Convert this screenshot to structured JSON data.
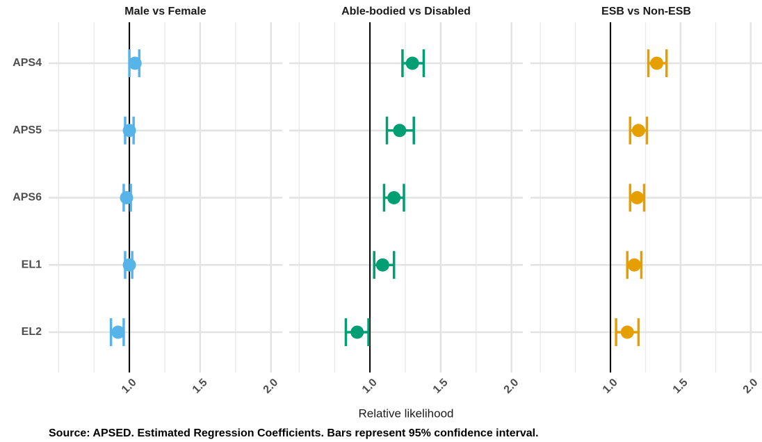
{
  "chart_data": [
    {
      "type": "errorbar",
      "title": "Male vs Female",
      "categories": [
        "APS4",
        "APS5",
        "APS6",
        "EL1",
        "EL2"
      ],
      "series": [
        {
          "color": "#56b4e9",
          "values": [
            1.04,
            1.0,
            0.98,
            1.0,
            0.92
          ],
          "lower": [
            1.0,
            0.97,
            0.96,
            0.97,
            0.87
          ],
          "upper": [
            1.07,
            1.03,
            1.01,
            1.02,
            0.96
          ]
        }
      ],
      "xlim": [
        0.43,
        2.08
      ],
      "xticks": [
        {
          "value": 1,
          "label": "1.0"
        },
        {
          "value": 1.5,
          "label": "1.5"
        },
        {
          "value": 2,
          "label": "2.0"
        }
      ],
      "minor_xticks": [
        0.5,
        0.75,
        1.25,
        1.75
      ],
      "reference_line": 1,
      "grid": true
    },
    {
      "type": "errorbar",
      "title": "Able-bodied vs Disabled",
      "series": [
        {
          "color": "#009e73",
          "values": [
            1.3,
            1.21,
            1.17,
            1.09,
            0.91
          ],
          "lower": [
            1.23,
            1.12,
            1.1,
            1.03,
            0.83
          ],
          "upper": [
            1.38,
            1.31,
            1.24,
            1.17,
            0.99
          ]
        }
      ],
      "xlim": [
        0.43,
        2.08
      ],
      "xticks": [
        {
          "value": 1,
          "label": "1.0"
        },
        {
          "value": 1.5,
          "label": "1.5"
        },
        {
          "value": 2,
          "label": "2.0"
        }
      ],
      "minor_xticks": [
        0.5,
        0.75,
        1.25,
        1.75
      ],
      "reference_line": 1,
      "grid": true
    },
    {
      "type": "errorbar",
      "title": "ESB vs Non-ESB",
      "series": [
        {
          "color": "#e69f00",
          "values": [
            1.33,
            1.2,
            1.19,
            1.17,
            1.12
          ],
          "lower": [
            1.27,
            1.14,
            1.14,
            1.12,
            1.04
          ],
          "upper": [
            1.4,
            1.26,
            1.24,
            1.22,
            1.2
          ]
        }
      ],
      "xlim": [
        0.43,
        2.08
      ],
      "xticks": [
        {
          "value": 1,
          "label": "1.0"
        },
        {
          "value": 1.5,
          "label": "1.5"
        },
        {
          "value": 2,
          "label": "2.0"
        }
      ],
      "minor_xticks": [
        0.5,
        0.75,
        1.25,
        1.75
      ],
      "reference_line": 1,
      "grid": true
    }
  ],
  "x_label": "Relative likelihood",
  "caption": "Source: APSED. Estimated Regression Coefficients. Bars represent 95% confidence interval."
}
